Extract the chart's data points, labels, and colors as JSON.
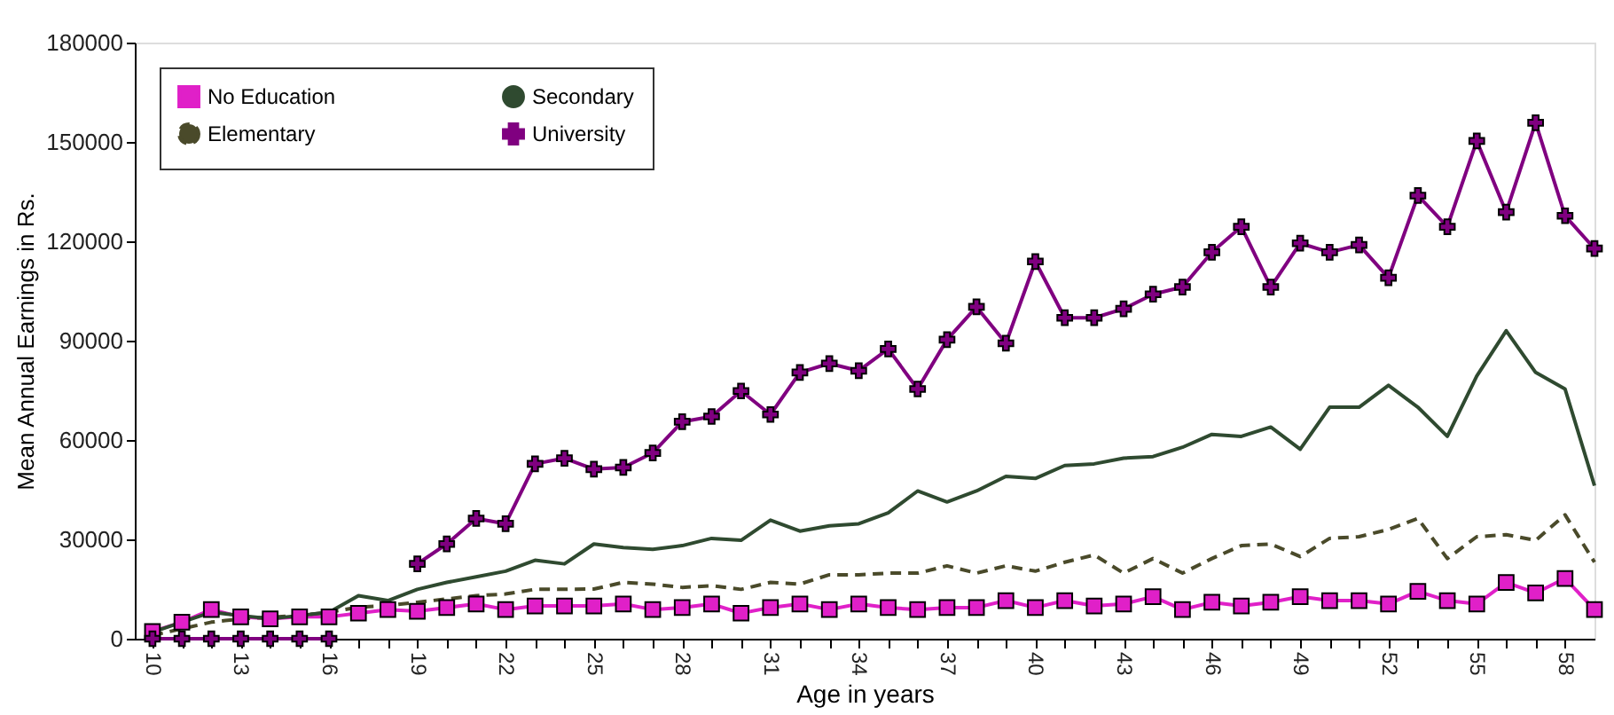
{
  "chart_data": {
    "type": "line",
    "xlabel": "Age in years",
    "ylabel": "Mean Annual  Earnings in Rs.",
    "x": [
      10,
      11,
      12,
      13,
      14,
      15,
      16,
      17,
      18,
      19,
      20,
      21,
      22,
      23,
      24,
      25,
      26,
      27,
      28,
      29,
      30,
      31,
      32,
      33,
      34,
      35,
      36,
      37,
      38,
      39,
      40,
      41,
      42,
      43,
      44,
      45,
      46,
      47,
      48,
      49,
      50,
      51,
      52,
      53,
      54,
      55,
      56,
      57,
      58,
      59
    ],
    "xlim": [
      9.4,
      59
    ],
    "xticks": [
      10,
      {
        "value": 11,
        "label": null
      },
      {
        "value": 12,
        "label": null
      },
      13,
      {
        "value": 14,
        "label": null
      },
      {
        "value": 15,
        "label": null
      },
      16,
      {
        "value": 17,
        "label": null
      },
      {
        "value": 18,
        "label": null
      },
      19,
      {
        "value": 20,
        "label": null
      },
      {
        "value": 21,
        "label": null
      },
      22,
      {
        "value": 23,
        "label": null
      },
      {
        "value": 24,
        "label": null
      },
      25,
      {
        "value": 26,
        "label": null
      },
      {
        "value": 27,
        "label": null
      },
      28,
      {
        "value": 29,
        "label": null
      },
      {
        "value": 30,
        "label": null
      },
      31,
      {
        "value": 32,
        "label": null
      },
      {
        "value": 33,
        "label": null
      },
      34,
      {
        "value": 35,
        "label": null
      },
      {
        "value": 36,
        "label": null
      },
      37,
      {
        "value": 38,
        "label": null
      },
      {
        "value": 39,
        "label": null
      },
      40,
      {
        "value": 41,
        "label": null
      },
      {
        "value": 42,
        "label": null
      },
      43,
      {
        "value": 44,
        "label": null
      },
      {
        "value": 45,
        "label": null
      },
      46,
      {
        "value": 47,
        "label": null
      },
      {
        "value": 48,
        "label": null
      },
      49,
      {
        "value": 50,
        "label": null
      },
      {
        "value": 51,
        "label": null
      },
      52,
      {
        "value": 53,
        "label": null
      },
      {
        "value": 54,
        "label": null
      },
      55,
      {
        "value": 56,
        "label": null
      },
      {
        "value": 57,
        "label": null
      },
      58
    ],
    "ylim": [
      0,
      180000
    ],
    "yticks": [
      0,
      30000,
      60000,
      90000,
      120000,
      150000,
      180000
    ],
    "legend": "top left",
    "grid": false,
    "series": [
      {
        "name": "No Education",
        "color": "#e020c8",
        "marker": "square",
        "line_style": "solid",
        "values": [
          2200,
          5000,
          8800,
          6600,
          6000,
          6600,
          6600,
          7700,
          8800,
          8300,
          9400,
          10500,
          8800,
          9900,
          9900,
          9900,
          10500,
          8800,
          9400,
          10500,
          7700,
          9400,
          10500,
          8800,
          10500,
          9400,
          8800,
          9400,
          9400,
          11500,
          9400,
          11500,
          9900,
          10500,
          12700,
          8800,
          11000,
          9900,
          11000,
          12700,
          11500,
          11500,
          10500,
          14300,
          11500,
          10500,
          17000,
          13800,
          18200,
          8800
        ]
      },
      {
        "name": "Elementary",
        "color": "#4a4a2a",
        "marker": "none",
        "line_style": "dashed",
        "values": [
          1000,
          3000,
          5000,
          6000,
          6500,
          7000,
          8000,
          9500,
          10000,
          11000,
          12000,
          13000,
          13500,
          14900,
          14900,
          15000,
          17000,
          16500,
          15500,
          16000,
          14900,
          17000,
          16500,
          19300,
          19300,
          19800,
          19800,
          22000,
          19800,
          22000,
          20400,
          23100,
          25300,
          19800,
          24200,
          19800,
          24200,
          28100,
          28600,
          24800,
          30300,
          30800,
          33000,
          36300,
          24200,
          30800,
          31400,
          29700,
          37400,
          23100
        ]
      },
      {
        "name": "Secondary",
        "color": "#2f4a30",
        "marker": "none",
        "line_style": "solid",
        "values": [
          2000,
          5000,
          8000,
          7000,
          6000,
          7000,
          8000,
          13000,
          11500,
          14900,
          17000,
          18700,
          20400,
          23700,
          22600,
          28600,
          27500,
          27000,
          28100,
          30300,
          29700,
          35800,
          32500,
          34100,
          34700,
          38000,
          44600,
          41300,
          44600,
          49000,
          48400,
          52300,
          52800,
          54500,
          55000,
          57800,
          61700,
          61100,
          63900,
          57200,
          69900,
          69900,
          76500,
          69900,
          61100,
          79300,
          93000,
          80400,
          75400,
          46200
        ]
      },
      {
        "name": "University",
        "color": "#800080",
        "marker": "cross",
        "line_style": "solid",
        "values": [
          0,
          0,
          0,
          0,
          0,
          0,
          0,
          null,
          null,
          22600,
          28600,
          36300,
          34700,
          52800,
          54500,
          51200,
          51700,
          56100,
          65500,
          67100,
          74800,
          67700,
          80400,
          83100,
          80900,
          87500,
          75400,
          90300,
          100200,
          89200,
          113900,
          96900,
          96900,
          99600,
          104000,
          106200,
          116700,
          124400,
          106200,
          119400,
          116700,
          118900,
          109000,
          133800,
          124400,
          150300,
          128800,
          155800,
          127700,
          117800
        ]
      }
    ]
  }
}
